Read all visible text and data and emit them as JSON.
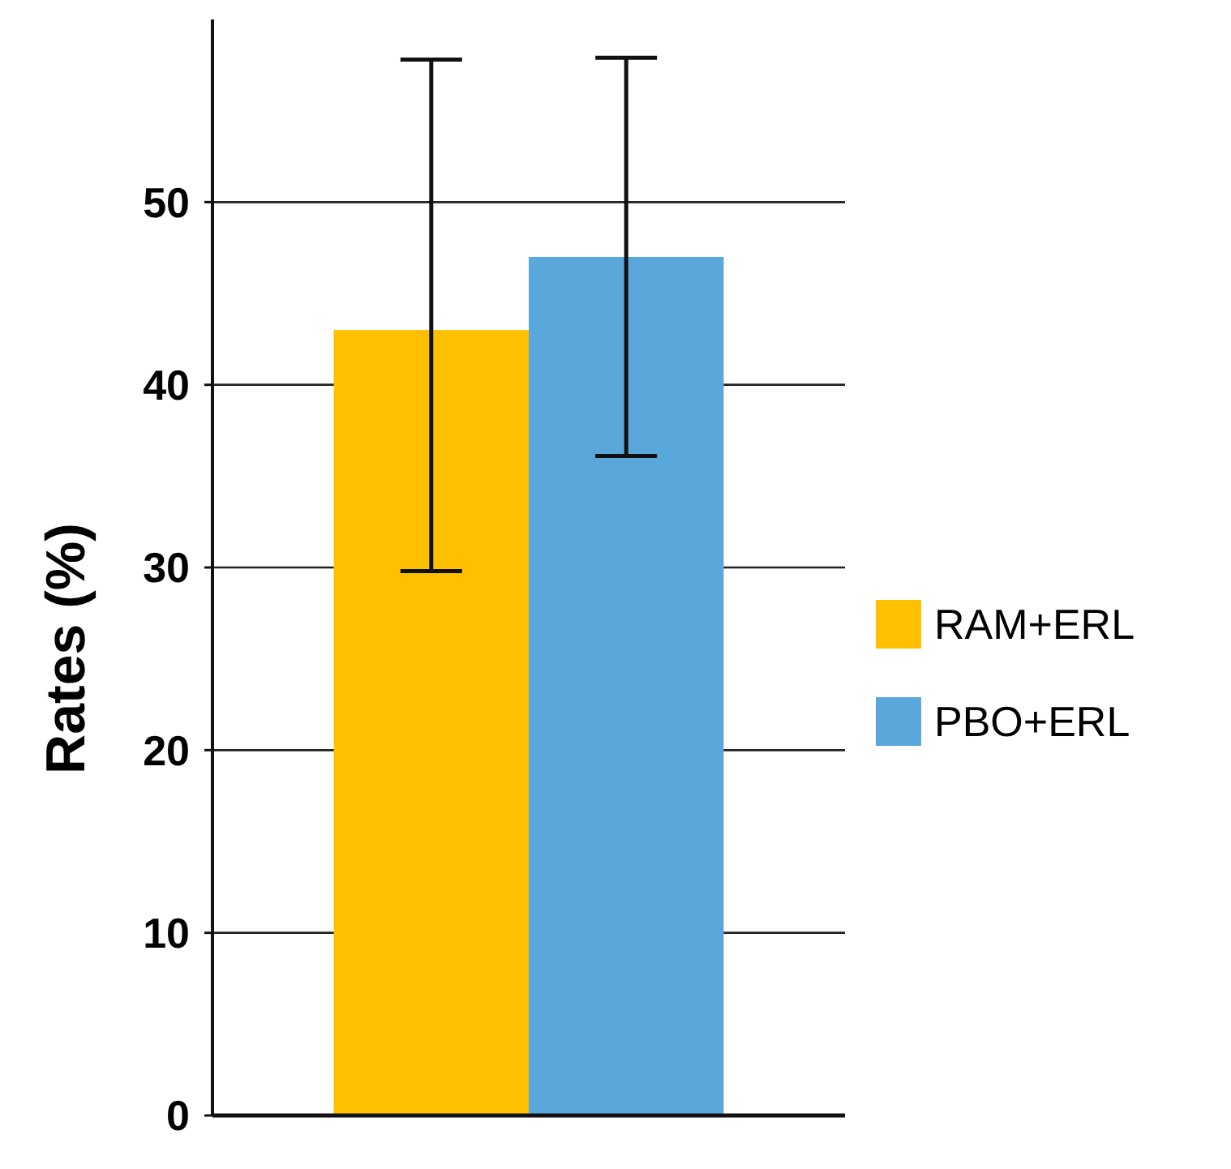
{
  "chart_data": {
    "type": "bar",
    "ylabel": "Rates (%)",
    "categories": [
      null
    ],
    "series": [
      {
        "name": "RAM+ERL",
        "color": "#ffc000",
        "values": [
          43
        ],
        "errors": [
          [
            29.8,
            57.8
          ]
        ]
      },
      {
        "name": "PBO+ERL",
        "color": "#5aa7dc",
        "values": [
          47
        ],
        "errors": [
          [
            36.1,
            57.9
          ]
        ]
      }
    ],
    "ylim": [
      0,
      60
    ],
    "yticks": [
      0,
      10,
      20,
      30,
      40,
      50
    ],
    "grid": "y",
    "legend": "right"
  }
}
